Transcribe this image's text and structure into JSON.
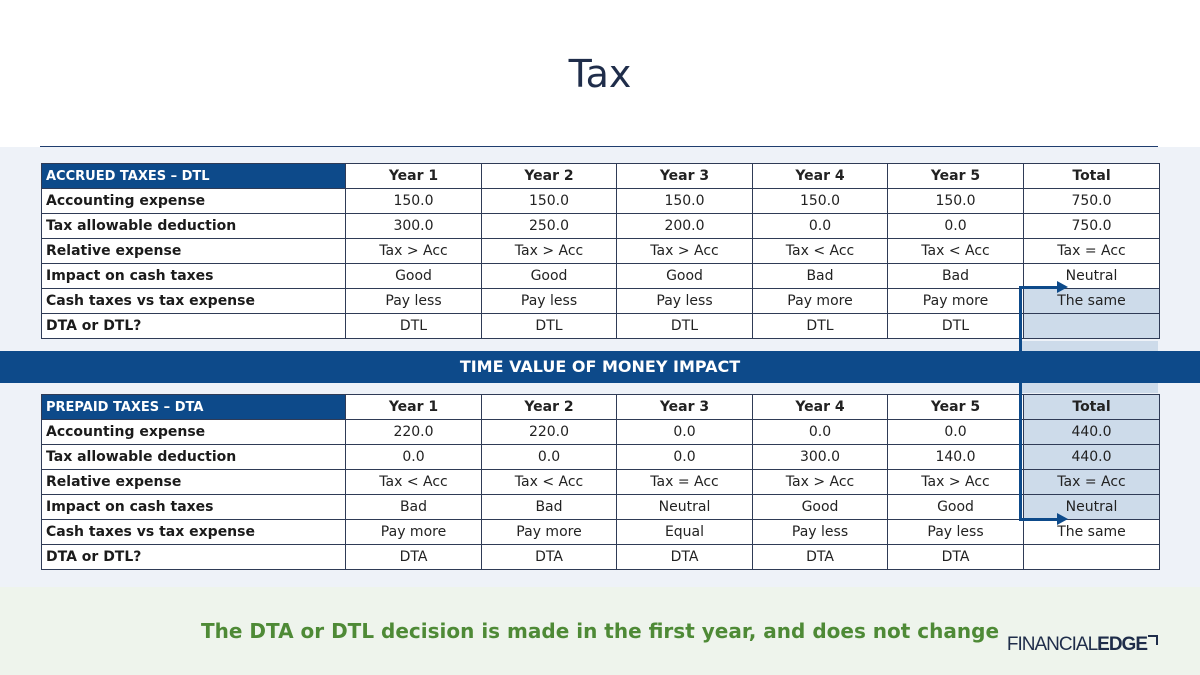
{
  "title": "Tax",
  "band": "TIME VALUE OF MONEY IMPACT",
  "footer": "The DTA or DTL decision is made in the first year, and does not change",
  "logo": {
    "part1": "FINANCIAL",
    "part2": "EDGE"
  },
  "colors": {
    "navy": "#0d4a8a",
    "highlight": "#cddbea",
    "green": "#4e8a36"
  },
  "accrued": {
    "header": [
      "ACCRUED TAXES – DTL",
      "Year 1",
      "Year 2",
      "Year 3",
      "Year 4",
      "Year 5",
      "Total"
    ],
    "rows": [
      [
        "Accounting expense",
        "150.0",
        "150.0",
        "150.0",
        "150.0",
        "150.0",
        "750.0"
      ],
      [
        "Tax allowable deduction",
        "300.0",
        "250.0",
        "200.0",
        "0.0",
        "0.0",
        "750.0"
      ],
      [
        "Relative expense",
        "Tax > Acc",
        "Tax > Acc",
        "Tax > Acc",
        "Tax < Acc",
        "Tax < Acc",
        "Tax = Acc"
      ],
      [
        "Impact on cash taxes",
        "Good",
        "Good",
        "Good",
        "Bad",
        "Bad",
        "Neutral"
      ],
      [
        "Cash taxes vs tax expense",
        "Pay less",
        "Pay less",
        "Pay less",
        "Pay more",
        "Pay more",
        "The same"
      ],
      [
        "DTA or DTL?",
        "DTL",
        "DTL",
        "DTL",
        "DTL",
        "DTL",
        ""
      ]
    ]
  },
  "prepaid": {
    "header": [
      "PREPAID TAXES – DTA",
      "Year 1",
      "Year 2",
      "Year 3",
      "Year 4",
      "Year 5",
      "Total"
    ],
    "rows": [
      [
        "Accounting expense",
        "220.0",
        "220.0",
        "0.0",
        "0.0",
        "0.0",
        "440.0"
      ],
      [
        "Tax allowable deduction",
        "0.0",
        "0.0",
        "0.0",
        "300.0",
        "140.0",
        "440.0"
      ],
      [
        "Relative expense",
        "Tax < Acc",
        "Tax < Acc",
        "Tax = Acc",
        "Tax > Acc",
        "Tax > Acc",
        "Tax = Acc"
      ],
      [
        "Impact on cash taxes",
        "Bad",
        "Bad",
        "Neutral",
        "Good",
        "Good",
        "Neutral"
      ],
      [
        "Cash taxes vs tax expense",
        "Pay more",
        "Pay more",
        "Equal",
        "Pay less",
        "Pay less",
        "The same"
      ],
      [
        "DTA or DTL?",
        "DTA",
        "DTA",
        "DTA",
        "DTA",
        "DTA",
        ""
      ]
    ]
  }
}
